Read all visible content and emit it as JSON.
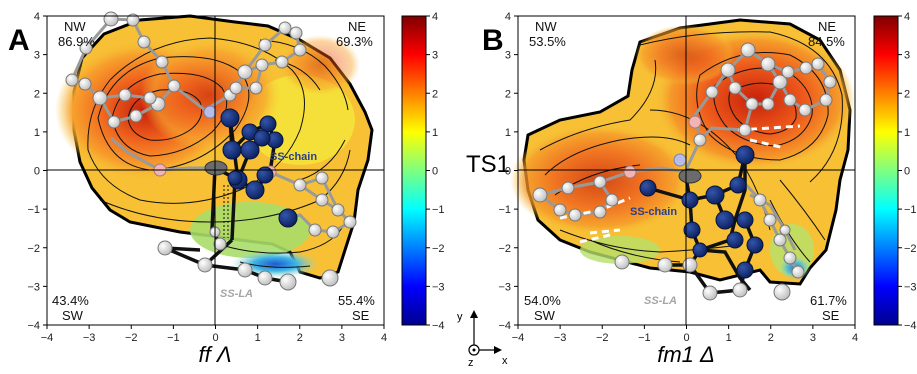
{
  "chart_data": [
    {
      "type": "heatmap",
      "panel_label": "A",
      "xlabel": "ff Λ",
      "xlim": [
        -4,
        4
      ],
      "ylim": [
        -4,
        4
      ],
      "xticks": [
        "−4",
        "−3",
        "−2",
        "−1",
        "0",
        "1",
        "2",
        "3",
        "4"
      ],
      "yticks": [
        "4",
        "3",
        "2",
        "1",
        "0",
        "−1",
        "−2",
        "−3",
        "−4"
      ],
      "quadrants": {
        "nw": "NW",
        "nw_value": "86.9%",
        "ne": "NE",
        "ne_value": "69.3%",
        "sw": "SW",
        "sw_value": "43.4%",
        "se": "SE",
        "se_value": "55.4%"
      },
      "annotations": {
        "chain": "SS-chain",
        "la": "SS-LA"
      },
      "colorbar": {
        "min": -4,
        "max": 4,
        "ticks": [
          "4",
          "3",
          "2",
          "1",
          "0",
          "−1",
          "−2",
          "−3",
          "−4"
        ]
      }
    },
    {
      "type": "heatmap",
      "panel_label": "B",
      "xlabel": "fm1 Δ",
      "xlim": [
        -4,
        4
      ],
      "ylim": [
        -4,
        4
      ],
      "xticks": [
        "−4",
        "−3",
        "−2",
        "−1",
        "0",
        "1",
        "2",
        "3",
        "4"
      ],
      "yticks": [
        "4",
        "3",
        "2",
        "1",
        "0",
        "−1",
        "−2",
        "−3",
        "−4"
      ],
      "quadrants": {
        "nw": "NW",
        "nw_value": "53.5%",
        "ne": "NE",
        "ne_value": "84.5%",
        "sw": "SW",
        "sw_value": "54.0%",
        "se": "SE",
        "se_value": "61.7%"
      },
      "annotations": {
        "chain": "SS-chain",
        "la": "SS-LA"
      },
      "colorbar": {
        "min": -4,
        "max": 4,
        "ticks": [
          "4",
          "3",
          "2",
          "1",
          "0",
          "−1",
          "−2",
          "−3",
          "−4"
        ]
      }
    }
  ],
  "center_label": "TS1",
  "axes_legend": {
    "y": "y",
    "x": "x",
    "z": "z"
  }
}
